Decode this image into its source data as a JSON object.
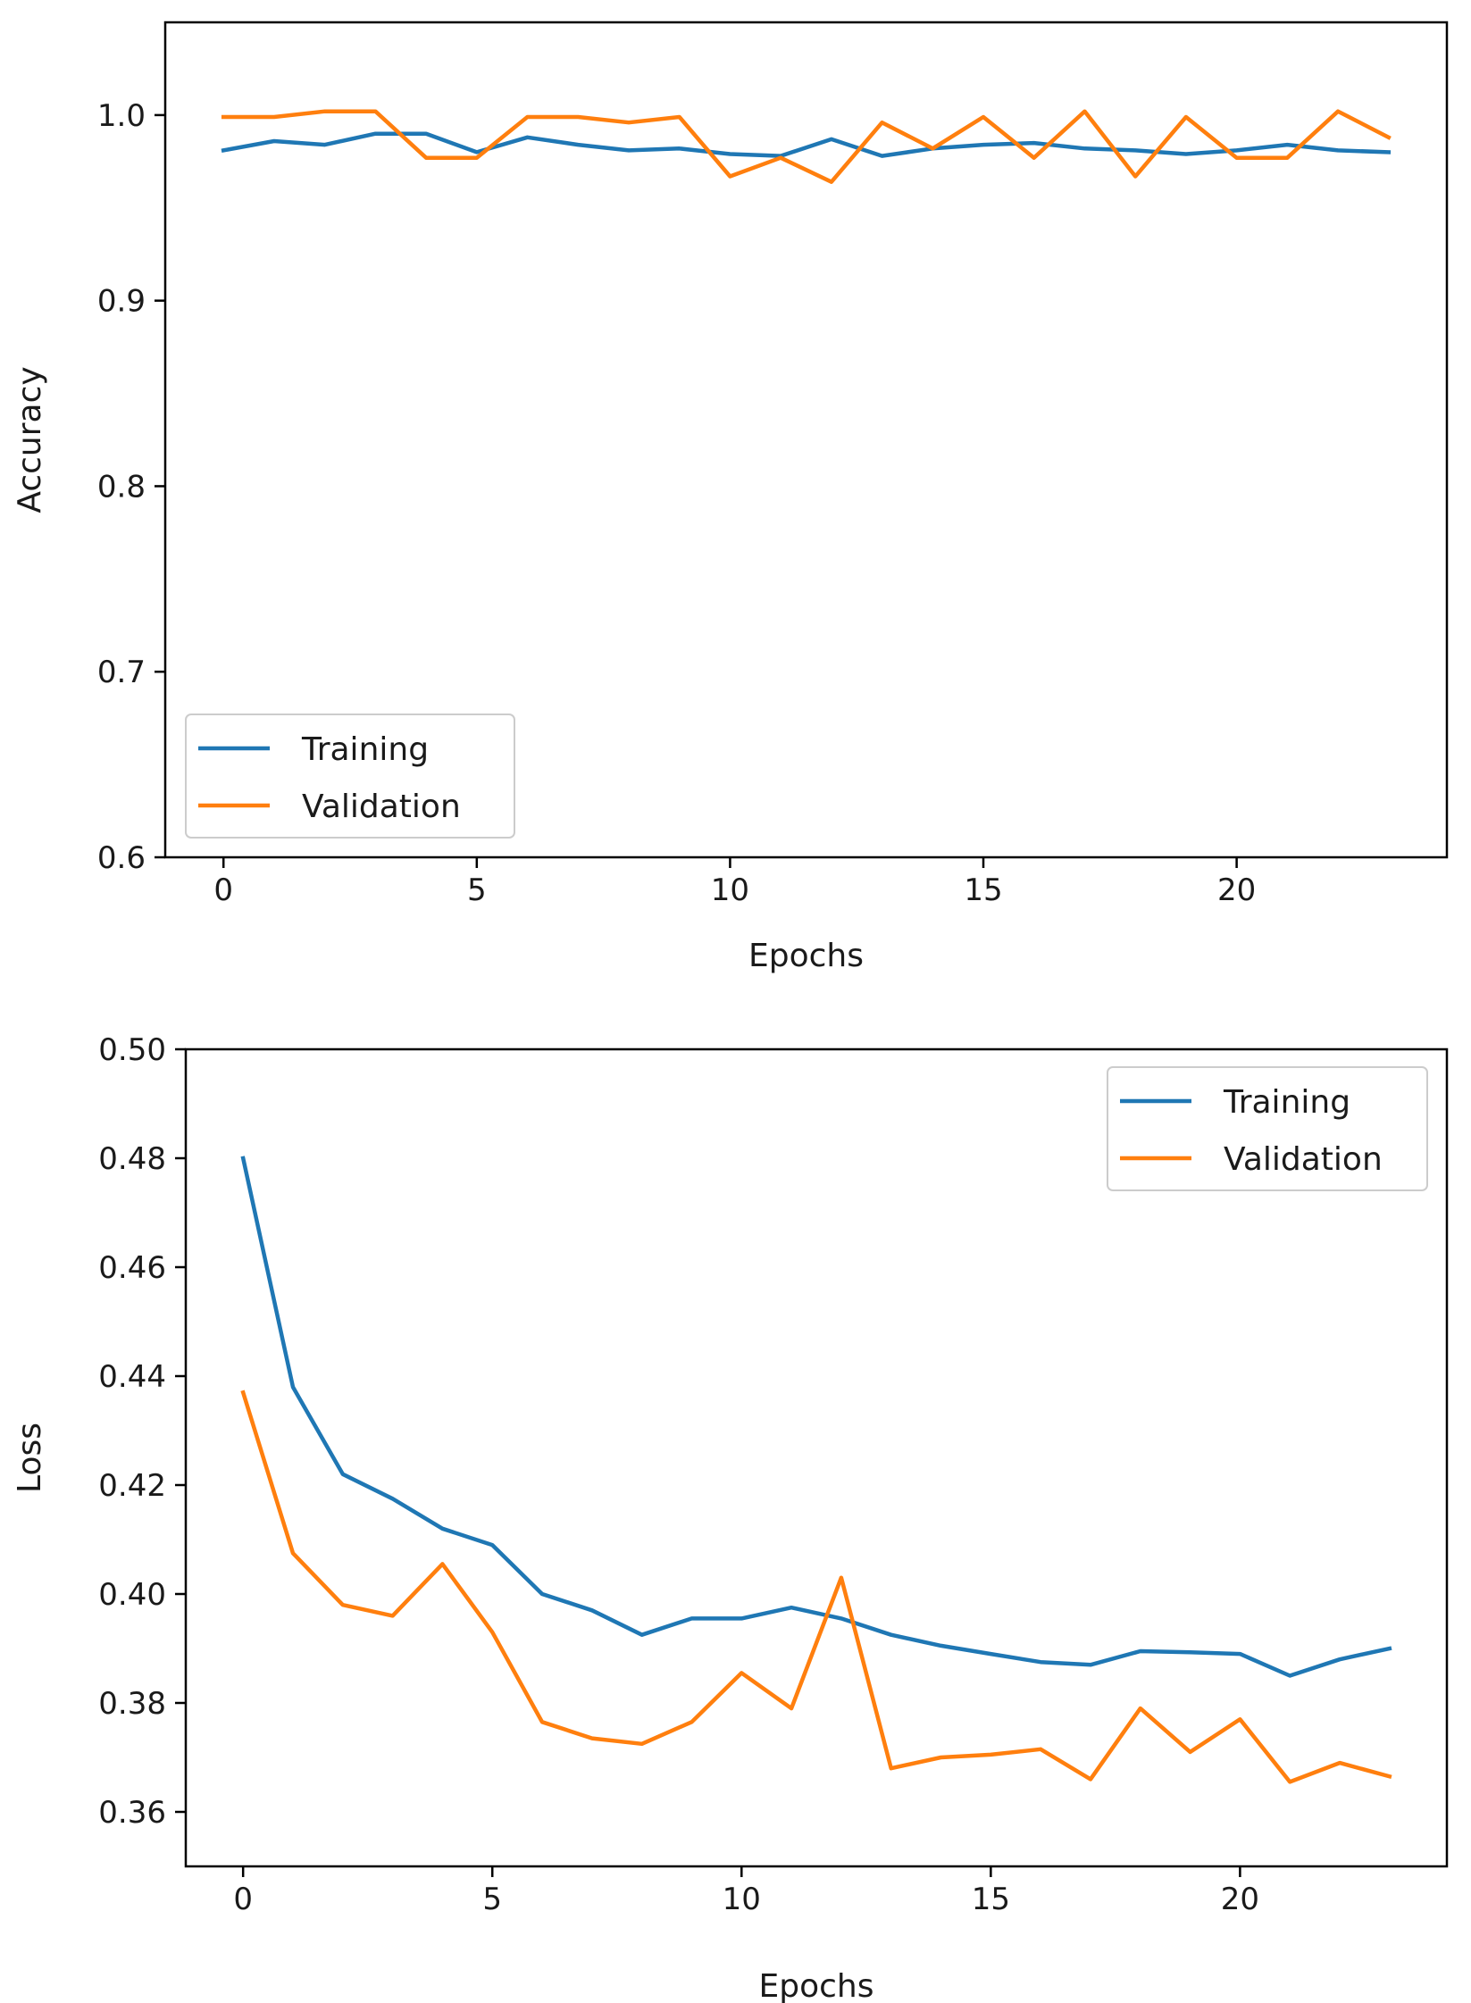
{
  "colors": {
    "training": "#1f77b4",
    "validation": "#ff7f0e"
  },
  "chart_data": [
    {
      "type": "line",
      "title": "",
      "xlabel": "Epochs",
      "ylabel": "Accuracy",
      "xlim": [
        -1.15,
        24.15
      ],
      "ylim": [
        0.6,
        1.05
      ],
      "xticks": [
        0,
        5,
        10,
        15,
        20
      ],
      "xtick_labels": [
        "0",
        "5",
        "10",
        "15",
        "20"
      ],
      "yticks": [
        0.6,
        0.7,
        0.8,
        0.9,
        1.0
      ],
      "ytick_labels": [
        "0.6",
        "0.7",
        "0.8",
        "0.9",
        "1.0"
      ],
      "legend": "lower-left",
      "x": [
        0,
        1,
        2,
        3,
        4,
        5,
        6,
        7,
        8,
        9,
        10,
        11,
        12,
        13,
        14,
        15,
        16,
        17,
        18,
        19,
        20,
        21,
        22,
        23
      ],
      "series": [
        {
          "name": "Training",
          "color_key": "training",
          "values": [
            0.981,
            0.986,
            0.984,
            0.99,
            0.99,
            0.98,
            0.988,
            0.984,
            0.981,
            0.982,
            0.979,
            0.978,
            0.987,
            0.978,
            0.982,
            0.984,
            0.985,
            0.982,
            0.981,
            0.979,
            0.981,
            0.984,
            0.981,
            0.98
          ]
        },
        {
          "name": "Validation",
          "color_key": "validation",
          "values": [
            0.999,
            0.999,
            1.002,
            1.002,
            0.977,
            0.977,
            0.999,
            0.999,
            0.996,
            0.999,
            0.967,
            0.977,
            0.964,
            0.996,
            0.982,
            0.999,
            0.977,
            1.002,
            0.967,
            0.999,
            0.977,
            0.977,
            1.002,
            0.988
          ]
        }
      ]
    },
    {
      "type": "line",
      "title": "",
      "xlabel": "Epochs",
      "ylabel": "Loss",
      "xlim": [
        -1.15,
        24.15
      ],
      "ylim": [
        0.35,
        0.5
      ],
      "xticks": [
        0,
        5,
        10,
        15,
        20
      ],
      "xtick_labels": [
        "0",
        "5",
        "10",
        "15",
        "20"
      ],
      "yticks": [
        0.36,
        0.38,
        0.4,
        0.42,
        0.44,
        0.46,
        0.48,
        0.5
      ],
      "ytick_labels": [
        "0.36",
        "0.38",
        "0.40",
        "0.42",
        "0.44",
        "0.46",
        "0.48",
        "0.50"
      ],
      "legend": "upper-right",
      "x": [
        0,
        1,
        2,
        3,
        4,
        5,
        6,
        7,
        8,
        9,
        10,
        11,
        12,
        13,
        14,
        15,
        16,
        17,
        18,
        19,
        20,
        21,
        22,
        23
      ],
      "series": [
        {
          "name": "Training",
          "color_key": "training",
          "values": [
            0.48,
            0.438,
            0.422,
            0.4175,
            0.412,
            0.409,
            0.4,
            0.397,
            0.3925,
            0.3955,
            0.3955,
            0.3975,
            0.3955,
            0.3925,
            0.3905,
            0.389,
            0.3875,
            0.387,
            0.3895,
            0.3893,
            0.389,
            0.385,
            0.388,
            0.39
          ]
        },
        {
          "name": "Validation",
          "color_key": "validation",
          "values": [
            0.437,
            0.4075,
            0.398,
            0.396,
            0.4055,
            0.393,
            0.3765,
            0.3735,
            0.3725,
            0.3765,
            0.3855,
            0.379,
            0.403,
            0.368,
            0.37,
            0.3705,
            0.3715,
            0.366,
            0.379,
            0.371,
            0.377,
            0.3655,
            0.369,
            0.3665
          ]
        }
      ]
    }
  ]
}
